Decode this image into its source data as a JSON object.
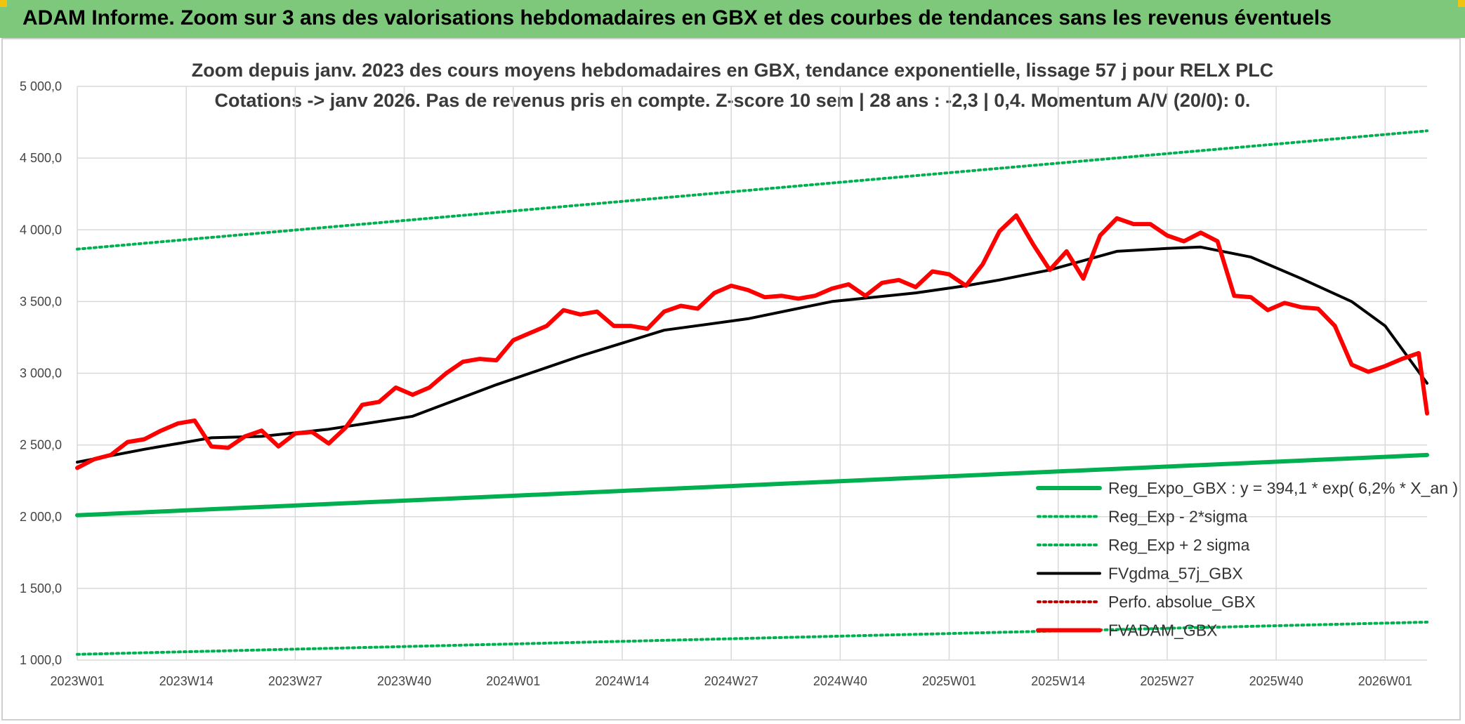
{
  "banner": {
    "title": "ADAM Informe. Zoom sur 3 ans des valorisations hebdomadaires en GBX et des courbes de tendances sans les revenus éventuels"
  },
  "chart_data": {
    "type": "line",
    "title": "Zoom depuis janv. 2023 des cours moyens hebdomadaires en GBX, tendance exponentielle, lissage 57 j pour RELX PLC",
    "subtitle": "Cotations -> janv 2026. Pas de revenus pris en compte. Z-score 10 sem | 28 ans : -2,3 | 0,4. Momentum A/V (20/0): 0.",
    "xlabel": "",
    "ylabel": "",
    "ylim": [
      1000,
      5000
    ],
    "yticks": [
      "1 000,0",
      "1 500,0",
      "2 000,0",
      "2 500,0",
      "3 000,0",
      "3 500,0",
      "4 000,0",
      "4 500,0",
      "5 000,0"
    ],
    "ytick_values": [
      1000,
      1500,
      2000,
      2500,
      3000,
      3500,
      4000,
      4500,
      5000
    ],
    "xticks": [
      "2023W01",
      "2023W14",
      "2023W27",
      "2023W40",
      "2024W01",
      "2024W14",
      "2024W27",
      "2024W40",
      "2025W01",
      "2025W14",
      "2025W27",
      "2025W40",
      "2026W01"
    ],
    "x_range_weeks": [
      0,
      161
    ],
    "grid": true,
    "legend_position": "bottom-right",
    "series": [
      {
        "name": "Reg_Expo_GBX : y = 394,1 * exp( 6,2% *  X_an )",
        "color": "#00b050",
        "style": "solid-thick",
        "x": [
          0,
          161
        ],
        "values": [
          2010,
          2430
        ]
      },
      {
        "name": "Reg_Exp - 2*sigma",
        "color": "#00b050",
        "style": "dotted",
        "x": [
          0,
          161
        ],
        "values": [
          1040,
          1265
        ]
      },
      {
        "name": "Reg_Exp + 2 sigma",
        "color": "#00b050",
        "style": "dotted",
        "x": [
          0,
          161
        ],
        "values": [
          3865,
          4690
        ]
      },
      {
        "name": "FVgdma_57j_GBX",
        "color": "#000000",
        "style": "solid",
        "x": [
          0,
          8,
          16,
          22,
          30,
          40,
          50,
          60,
          70,
          80,
          90,
          100,
          106,
          110,
          116,
          124,
          130,
          134,
          140,
          146,
          152,
          156,
          161
        ],
        "values": [
          2380,
          2470,
          2550,
          2560,
          2610,
          2700,
          2920,
          3120,
          3300,
          3380,
          3500,
          3560,
          3610,
          3650,
          3720,
          3850,
          3870,
          3880,
          3810,
          3660,
          3500,
          3330,
          2930
        ]
      },
      {
        "name": "Perfo. absolue_GBX",
        "color": "#c00000",
        "style": "dotted",
        "x": [],
        "values": []
      },
      {
        "name": "FVADAM_GBX",
        "color": "#ff0000",
        "style": "solid-thick",
        "x": [
          0,
          2,
          4,
          6,
          8,
          10,
          12,
          14,
          16,
          18,
          20,
          22,
          24,
          26,
          28,
          30,
          32,
          34,
          36,
          38,
          40,
          42,
          44,
          46,
          48,
          50,
          52,
          54,
          56,
          58,
          60,
          62,
          64,
          66,
          68,
          70,
          72,
          74,
          76,
          78,
          80,
          82,
          84,
          86,
          88,
          90,
          92,
          94,
          96,
          98,
          100,
          102,
          104,
          106,
          108,
          110,
          112,
          114,
          116,
          118,
          120,
          122,
          124,
          126,
          128,
          130,
          132,
          134,
          136,
          138,
          140,
          142,
          144,
          146,
          148,
          150,
          152,
          154,
          156,
          158,
          160,
          161
        ],
        "values": [
          2340,
          2400,
          2430,
          2520,
          2540,
          2600,
          2650,
          2670,
          2490,
          2480,
          2560,
          2600,
          2490,
          2580,
          2590,
          2510,
          2620,
          2780,
          2800,
          2900,
          2850,
          2900,
          3000,
          3080,
          3100,
          3090,
          3230,
          3280,
          3330,
          3440,
          3410,
          3430,
          3330,
          3330,
          3310,
          3430,
          3470,
          3450,
          3560,
          3610,
          3580,
          3530,
          3540,
          3520,
          3540,
          3590,
          3620,
          3540,
          3630,
          3650,
          3600,
          3710,
          3690,
          3610,
          3760,
          3990,
          4100,
          3900,
          3720,
          3850,
          3660,
          3960,
          4080,
          4040,
          4040,
          3960,
          3920,
          3980,
          3920,
          3540,
          3530,
          3440,
          3490,
          3460,
          3450,
          3330,
          3060,
          3010,
          3050,
          3100,
          3140,
          2720
        ]
      }
    ]
  }
}
